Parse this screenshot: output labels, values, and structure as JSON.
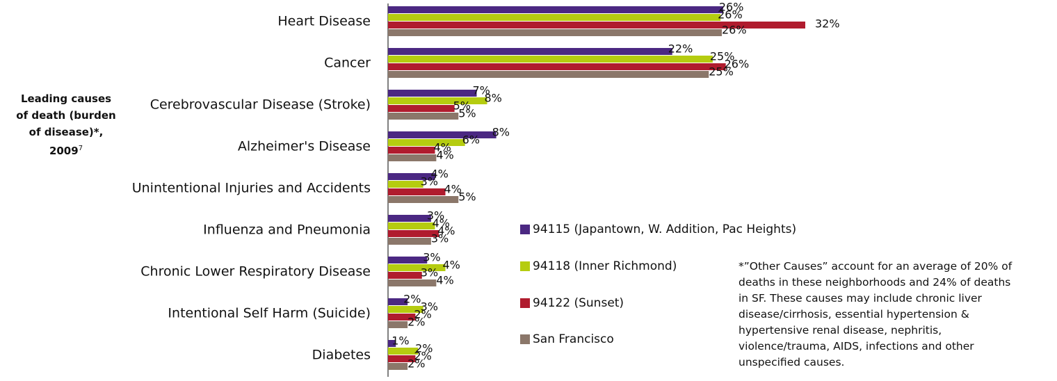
{
  "chart_data": {
    "type": "bar",
    "orientation": "horizontal",
    "title": "Leading causes of death (burden of disease)*, 2009",
    "title_superscript": "7",
    "categories": [
      "Heart Disease",
      "Cancer",
      "Cerebrovascular Disease (Stroke)",
      "Alzheimer's Disease",
      "Unintentional Injuries and Accidents",
      "Influenza and Pneumonia",
      "Chronic Lower Respiratory  Disease",
      "Intentional Self Harm (Suicide)",
      "Diabetes"
    ],
    "series": [
      {
        "name": "94115 (Japantown, W. Addition, Pac Heights)",
        "color": "#4b2882",
        "values": [
          25.7,
          21.8,
          6.8,
          8.3,
          3.6,
          3.3,
          3.0,
          1.5,
          0.6
        ],
        "value_labels": [
          "26%",
          "22%",
          "7%",
          "8%",
          "4%",
          "3%",
          "3%",
          "2%",
          "1%"
        ]
      },
      {
        "name": "94118 (Inner Richmond)",
        "color": "#b5cc10",
        "values": [
          25.5,
          24.9,
          7.6,
          5.9,
          2.7,
          3.6,
          4.4,
          2.7,
          2.3
        ],
        "value_labels": [
          "26%",
          "25%",
          "8%",
          "6%",
          "3%",
          "4%",
          "4%",
          "3%",
          "2%"
        ]
      },
      {
        "name": "94122 (Sunset)",
        "color": "#b01c2e",
        "values": [
          32.0,
          25.9,
          5.1,
          3.6,
          4.4,
          3.9,
          2.6,
          2.1,
          2.1
        ],
        "value_labels": [
          "32%",
          "26%",
          "5%",
          "4%",
          "4%",
          "4%",
          "3%",
          "2%",
          "2%"
        ]
      },
      {
        "name": "San Francisco",
        "color": "#8b776a",
        "values": [
          25.6,
          24.6,
          5.4,
          3.7,
          5.4,
          3.3,
          3.7,
          1.5,
          1.5
        ],
        "value_labels": [
          "26%",
          "25%",
          "5%",
          "4%",
          "5%",
          "3%",
          "4%",
          "2%",
          "2%"
        ]
      }
    ],
    "xlim": [
      0,
      32
    ],
    "legend": "right",
    "footnote": "*”Other Causes” account for an average of 20% of deaths in these neighborhoods and 24% of deaths in SF. These causes may include chronic liver disease/cirrhosis, essential hypertension & hypertensive renal disease, nephritis, violence/trauma, AIDS, infections and other unspecified causes."
  }
}
